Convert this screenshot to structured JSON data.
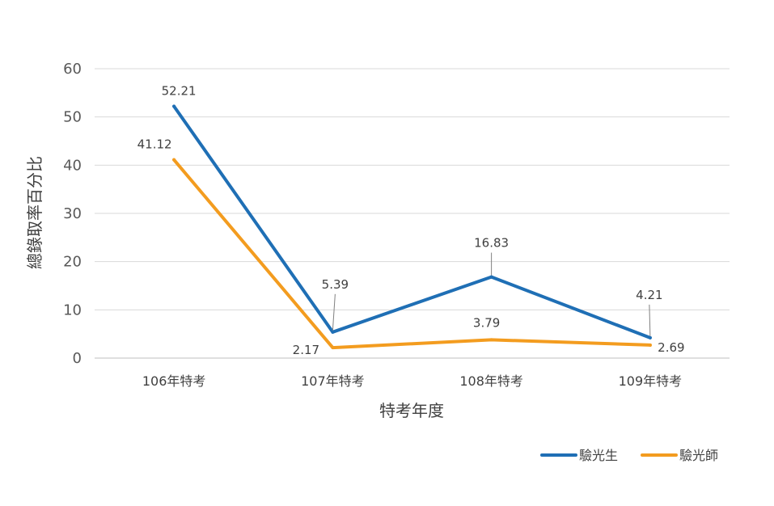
{
  "chart_data": {
    "type": "line",
    "categories": [
      "106年特考",
      "107年特考",
      "108年特考",
      "109年特考"
    ],
    "series": [
      {
        "name": "驗光生",
        "values": [
          52.21,
          5.39,
          16.83,
          4.21
        ],
        "color": "#1f6fb5"
      },
      {
        "name": "驗光師",
        "values": [
          41.12,
          2.17,
          3.79,
          2.69
        ],
        "color": "#f39c1f"
      }
    ],
    "xlabel": "特考年度",
    "ylabel": "總錄取率百分比",
    "ylim": [
      0,
      60
    ],
    "yticks": [
      "0",
      "10",
      "20",
      "30",
      "40",
      "50",
      "60"
    ],
    "grid": true,
    "legend_position": "bottom-right",
    "data_labels": [
      [
        "52.21",
        "5.39",
        "16.83",
        "4.21"
      ],
      [
        "41.12",
        "2.17",
        "3.79",
        "2.69"
      ]
    ]
  }
}
